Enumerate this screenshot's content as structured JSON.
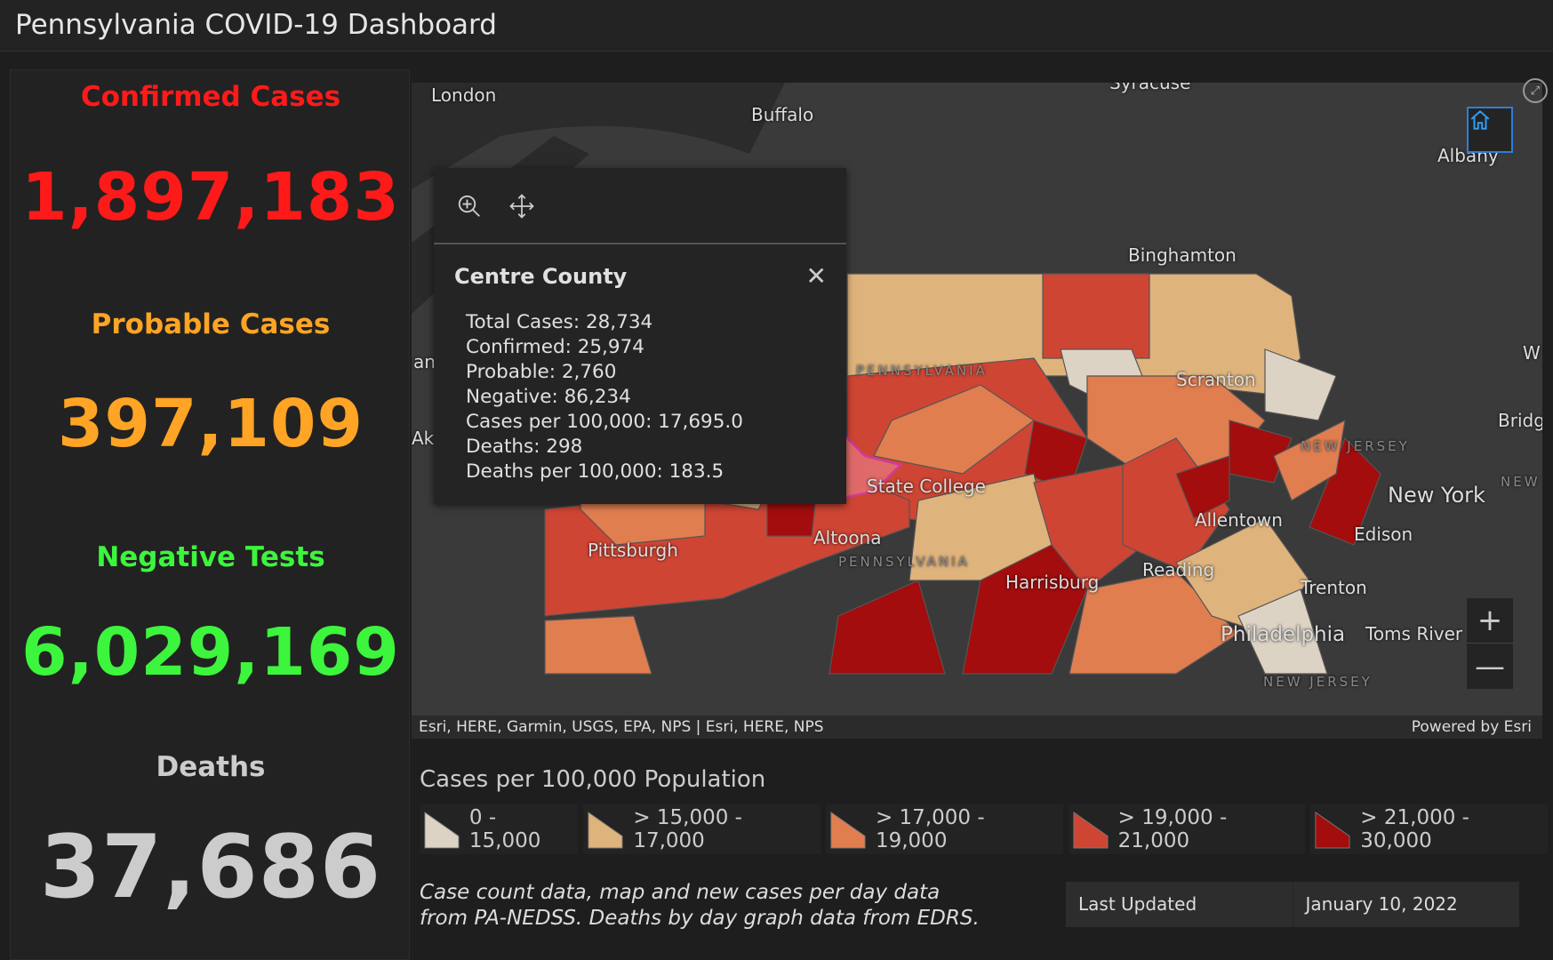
{
  "header": {
    "title": "Pennsylvania COVID-19 Dashboard"
  },
  "stats": [
    {
      "label": "Confirmed Cases",
      "value": "1,897,183",
      "color": "#ff1a1a"
    },
    {
      "label": "Probable Cases",
      "value": "397,109",
      "color": "#ffa424"
    },
    {
      "label": "Negative Tests",
      "value": "6,029,169",
      "color": "#3cf53c"
    },
    {
      "label": "Deaths",
      "value": "37,686",
      "color": "#cccccc"
    }
  ],
  "map": {
    "labels": [
      "London",
      "Buffalo",
      "Syracuse",
      "Albany",
      "Binghamton",
      "Scranton",
      "State College",
      "Altoona",
      "Pittsburgh",
      "Harrisburg",
      "Reading",
      "Allentown",
      "Philadelphia",
      "Trenton",
      "Toms River",
      "Edison",
      "New York",
      "W",
      "Bridg",
      "an",
      "Akr"
    ],
    "region_labels": [
      "PENNSYLVANIA",
      "PENNSYLVANIA",
      "NEW JERSEY",
      "NEW JERSEY",
      "NEW"
    ],
    "attribution": "Esri, HERE, Garmin, USGS, EPA, NPS | Esri, HERE, NPS",
    "powered_by": "Powered by Esri",
    "zoom_in": "+",
    "zoom_out": "—"
  },
  "popup": {
    "title": "Centre County",
    "lines": [
      "Total Cases: 28,734",
      "Confirmed: 25,974",
      "Probable: 2,760",
      "Negative: 86,234",
      "Cases per 100,000: 17,695.0",
      "Deaths: 298",
      "Deaths per 100,000: 183.5"
    ]
  },
  "legend": {
    "title": "Cases per 100,000 Population",
    "items": [
      {
        "label": "0 - 15,000",
        "color": "#ddd3c4"
      },
      {
        "label": "> 15,000 - 17,000",
        "color": "#dfb37c"
      },
      {
        "label": "> 17,000 - 19,000",
        "color": "#e07e50"
      },
      {
        "label": "> 19,000 - 21,000",
        "color": "#cf4534"
      },
      {
        "label": "> 21,000 - 30,000",
        "color": "#a30d0d"
      }
    ]
  },
  "footnote": "Case count data, map and new cases per day data from PA-NEDSS.  Deaths by day graph data from EDRS.",
  "last_updated": {
    "label": "Last Updated",
    "value": "January 10, 2022"
  }
}
